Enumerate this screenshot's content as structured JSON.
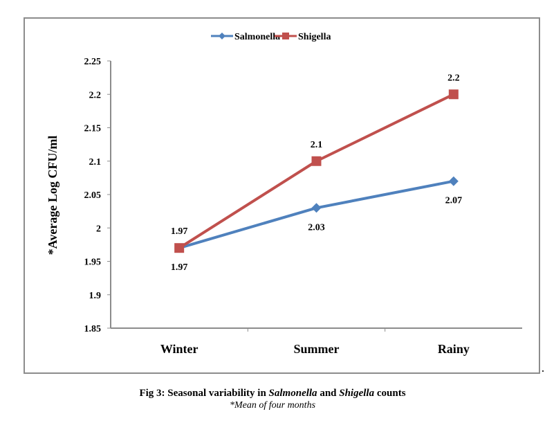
{
  "chart_data": {
    "type": "line",
    "title": "",
    "xlabel": "",
    "ylabel": "*Average Log CFU/ml",
    "categories": [
      "Winter",
      "Summer",
      "Rainy"
    ],
    "series": [
      {
        "name": "Salmonella",
        "values": [
          1.97,
          2.03,
          2.07
        ],
        "color": "#4f81bd",
        "marker": "diamond",
        "label_position": "below"
      },
      {
        "name": "Shigella",
        "values": [
          1.97,
          2.1,
          2.2
        ],
        "color": "#c0504d",
        "marker": "square",
        "label_position": "above"
      }
    ],
    "data_labels": {
      "Salmonella": [
        "1.97",
        "2.03",
        "2.07"
      ],
      "Shigella": [
        "1.97",
        "2.1",
        "2.2"
      ]
    },
    "ylim": [
      1.85,
      2.25
    ],
    "yticks": [
      1.85,
      1.9,
      1.95,
      2,
      2.05,
      2.1,
      2.15,
      2.2,
      2.25
    ],
    "ytick_labels": [
      "1.85",
      "1.9",
      "1.95",
      "2",
      "2.05",
      "2.1",
      "2.15",
      "2.2",
      "2.25"
    ],
    "grid": false,
    "legend_position": "top-center"
  },
  "caption": {
    "prefix": "Fig 3: Seasonal variability in ",
    "italic1": "Salmonella",
    "middle": " and ",
    "italic2": "Shigella",
    "suffix": " counts",
    "note": "*Mean of four months"
  }
}
